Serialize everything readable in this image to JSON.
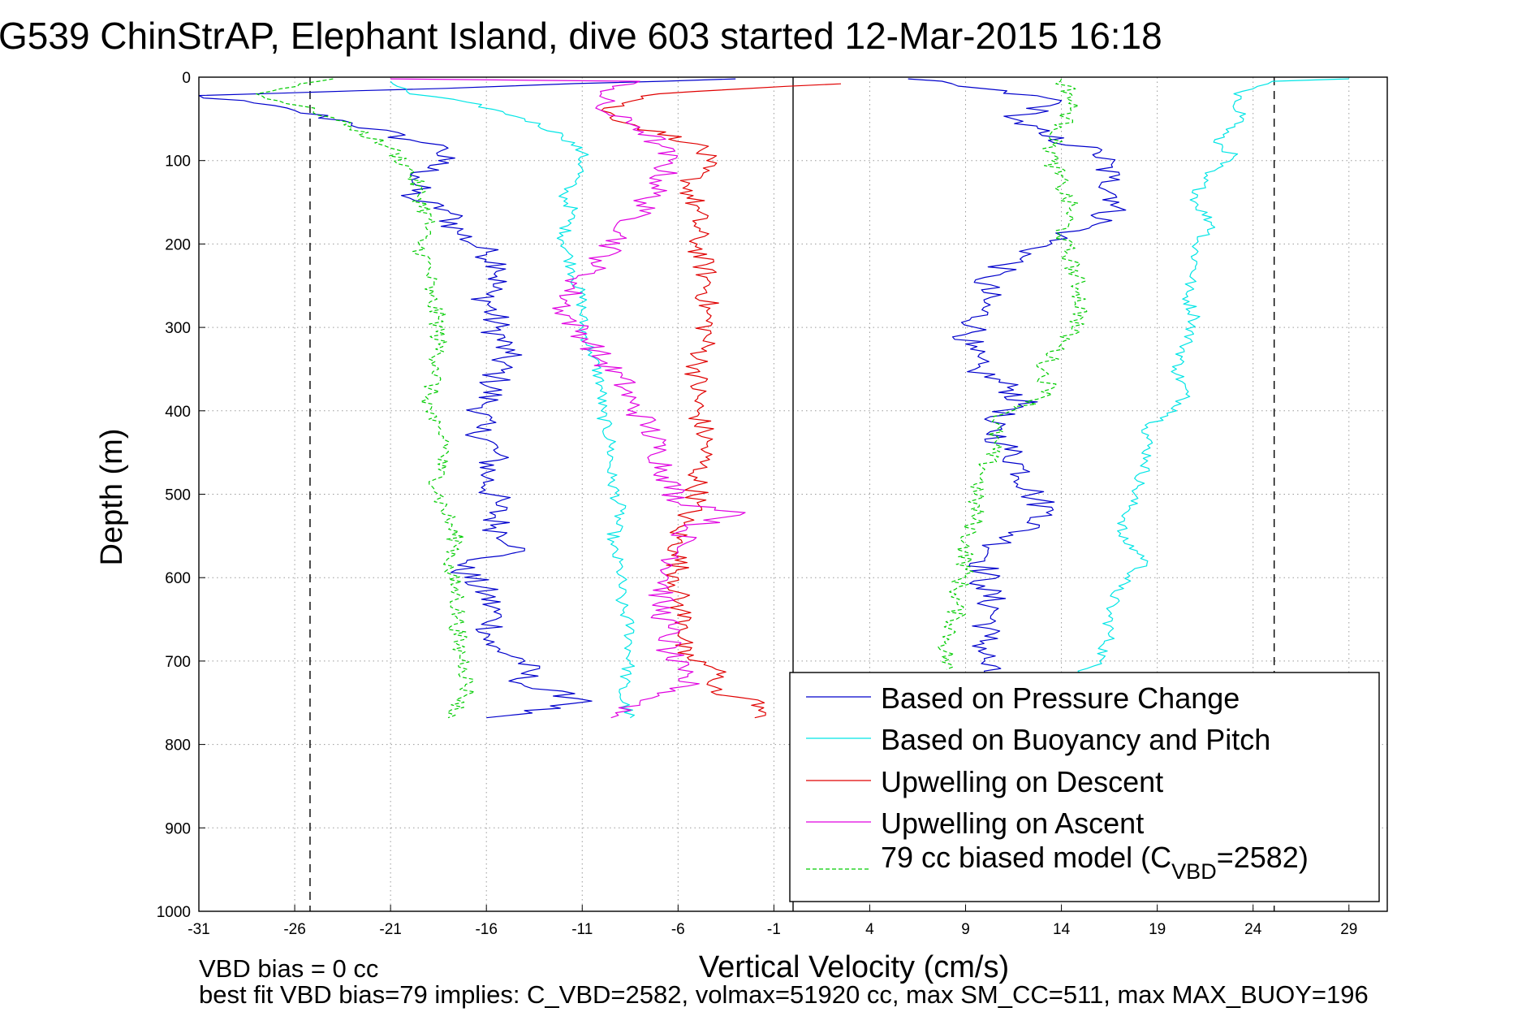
{
  "chart_data": {
    "type": "line",
    "title": "G539 ChinStrAP, Elephant Island, dive 603 started 12-Mar-2015 16:18",
    "xlabel": "Vertical Velocity (cm/s)",
    "ylabel": "Depth (m)",
    "xlim": [
      -31,
      31
    ],
    "ylim": [
      1000,
      0
    ],
    "y_reversed": true,
    "grid": true,
    "x_ticks": [
      "-31",
      "-26",
      "-21",
      "-16",
      "-11",
      "-6",
      "-1",
      "4",
      "9",
      "14",
      "19",
      "24",
      "29"
    ],
    "y_ticks": [
      "0",
      "100",
      "200",
      "300",
      "400",
      "500",
      "600",
      "700",
      "800",
      "900",
      "1000"
    ],
    "reference_lines": [
      {
        "style": "dashed",
        "x": -25.2
      },
      {
        "style": "solid",
        "x": 0
      },
      {
        "style": "dashed",
        "x": 25.1
      }
    ],
    "legend_position": "bottom-right",
    "legend": {
      "entries": [
        {
          "label": "Based on Pressure Change",
          "color": "#0000cc",
          "dash": false
        },
        {
          "label": "Based on Buoyancy and Pitch",
          "color": "#00e5e5",
          "dash": false
        },
        {
          "label": "Upwelling on Descent",
          "color": "#e00000",
          "dash": false
        },
        {
          "label": "Upwelling on Ascent",
          "color": "#e000e0",
          "dash": false
        }
      ],
      "model_entry": {
        "color": "#00cc00",
        "prefix": "79 cc biased model (C",
        "subscript": "VBD",
        "suffix": "=2582)"
      }
    },
    "series": [
      {
        "name": "Based on Pressure Change",
        "color": "#0000cc",
        "noise": 0.9,
        "points": [
          [
            -3,
            2
          ],
          [
            -31,
            22
          ],
          [
            -26,
            40
          ],
          [
            -23,
            55
          ],
          [
            -20,
            75
          ],
          [
            -18,
            85
          ],
          [
            -18.5,
            100
          ],
          [
            -19.5,
            120
          ],
          [
            -20,
            145
          ],
          [
            -18,
            160
          ],
          [
            -17.5,
            185
          ],
          [
            -16,
            210
          ],
          [
            -15,
            230
          ],
          [
            -16,
            260
          ],
          [
            -15.5,
            300
          ],
          [
            -15,
            330
          ],
          [
            -15.5,
            360
          ],
          [
            -16,
            390
          ],
          [
            -16.5,
            420
          ],
          [
            -15.5,
            450
          ],
          [
            -16,
            480
          ],
          [
            -15.5,
            510
          ],
          [
            -15.5,
            540
          ],
          [
            -14,
            565
          ],
          [
            -17.5,
            585
          ],
          [
            -16,
            620
          ],
          [
            -15.5,
            650
          ],
          [
            -16,
            680
          ],
          [
            -14,
            700
          ],
          [
            -14,
            730
          ],
          [
            -10.5,
            748
          ],
          [
            -16,
            768
          ],
          [
            6,
            2
          ],
          [
            14,
            28
          ],
          [
            11.5,
            50
          ],
          [
            13,
            70
          ],
          [
            16,
            90
          ],
          [
            16.5,
            120
          ],
          [
            17,
            150
          ],
          [
            16,
            175
          ],
          [
            14,
            190
          ],
          [
            12,
            215
          ],
          [
            10,
            240
          ],
          [
            10,
            270
          ],
          [
            9.5,
            300
          ],
          [
            9,
            320
          ],
          [
            9.5,
            350
          ],
          [
            11.5,
            375
          ],
          [
            12,
            395
          ],
          [
            10,
            410
          ],
          [
            11,
            440
          ],
          [
            12,
            470
          ],
          [
            12.5,
            500
          ],
          [
            13.5,
            525
          ],
          [
            11,
            555
          ],
          [
            10,
            580
          ],
          [
            10,
            610
          ],
          [
            10.5,
            640
          ],
          [
            10,
            670
          ],
          [
            10,
            700
          ],
          [
            10,
            715
          ]
        ]
      },
      {
        "name": "Based on Buoyancy and Pitch",
        "color": "#00e5e5",
        "noise": 0.35,
        "points": [
          [
            -21,
            5
          ],
          [
            -20,
            20
          ],
          [
            -17,
            30
          ],
          [
            -14,
            50
          ],
          [
            -12,
            70
          ],
          [
            -11,
            90
          ],
          [
            -11,
            110
          ],
          [
            -12,
            140
          ],
          [
            -11.5,
            160
          ],
          [
            -12,
            190
          ],
          [
            -11.5,
            230
          ],
          [
            -11,
            270
          ],
          [
            -11,
            300
          ],
          [
            -10.5,
            330
          ],
          [
            -10,
            370
          ],
          [
            -10,
            400
          ],
          [
            -9.5,
            440
          ],
          [
            -9.5,
            480
          ],
          [
            -9,
            520
          ],
          [
            -9.5,
            560
          ],
          [
            -9,
            590
          ],
          [
            -9,
            630
          ],
          [
            -8.5,
            660
          ],
          [
            -8.5,
            700
          ],
          [
            -9,
            740
          ],
          [
            -8.5,
            768
          ],
          [
            29,
            2
          ],
          [
            25,
            5
          ],
          [
            23,
            20
          ],
          [
            23.5,
            50
          ],
          [
            22,
            75
          ],
          [
            23,
            95
          ],
          [
            21.5,
            115
          ],
          [
            21,
            150
          ],
          [
            22,
            180
          ],
          [
            21,
            200
          ],
          [
            21,
            230
          ],
          [
            20.5,
            260
          ],
          [
            21,
            290
          ],
          [
            20.5,
            320
          ],
          [
            20,
            350
          ],
          [
            20.5,
            380
          ],
          [
            20,
            400
          ],
          [
            18.5,
            420
          ],
          [
            18.5,
            460
          ],
          [
            18,
            490
          ],
          [
            17.5,
            520
          ],
          [
            17,
            550
          ],
          [
            18.5,
            580
          ],
          [
            17,
            610
          ],
          [
            16.5,
            640
          ],
          [
            16.5,
            670
          ],
          [
            16,
            700
          ],
          [
            15,
            715
          ]
        ]
      },
      {
        "name": "Upwelling on Descent",
        "color": "#e00000",
        "noise": 0.65,
        "points": [
          [
            2.5,
            8
          ],
          [
            -7,
            20
          ],
          [
            -10,
            40
          ],
          [
            -8,
            60
          ],
          [
            -5,
            80
          ],
          [
            -4.5,
            100
          ],
          [
            -5.5,
            130
          ],
          [
            -5,
            160
          ],
          [
            -5,
            200
          ],
          [
            -4.5,
            240
          ],
          [
            -4.5,
            280
          ],
          [
            -4.5,
            310
          ],
          [
            -5,
            350
          ],
          [
            -5,
            400
          ],
          [
            -4.5,
            440
          ],
          [
            -5,
            480
          ],
          [
            -5,
            510
          ],
          [
            -6,
            540
          ],
          [
            -6,
            570
          ],
          [
            -6,
            600
          ],
          [
            -6,
            630
          ],
          [
            -5.5,
            660
          ],
          [
            -6,
            690
          ],
          [
            -4,
            710
          ],
          [
            -4,
            740
          ],
          [
            -1.5,
            750
          ],
          [
            -2,
            768
          ]
        ]
      },
      {
        "name": "Upwelling on Ascent",
        "color": "#e000e0",
        "noise": 0.75,
        "points": [
          [
            -21,
            2
          ],
          [
            -8,
            5
          ],
          [
            -10,
            20
          ],
          [
            -10,
            40
          ],
          [
            -8,
            60
          ],
          [
            -7,
            80
          ],
          [
            -6.5,
            100
          ],
          [
            -7,
            130
          ],
          [
            -8,
            160
          ],
          [
            -9,
            190
          ],
          [
            -10,
            220
          ],
          [
            -11.5,
            250
          ],
          [
            -12,
            280
          ],
          [
            -10.5,
            320
          ],
          [
            -10,
            340
          ],
          [
            -9,
            360
          ],
          [
            -8.5,
            390
          ],
          [
            -7.5,
            420
          ],
          [
            -7,
            450
          ],
          [
            -6.5,
            480
          ],
          [
            -6,
            510
          ],
          [
            -2.5,
            522
          ],
          [
            -5.5,
            540
          ],
          [
            -6,
            570
          ],
          [
            -6.5,
            600
          ],
          [
            -7,
            630
          ],
          [
            -6.5,
            660
          ],
          [
            -6.5,
            690
          ],
          [
            -6,
            710
          ],
          [
            -5.5,
            730
          ],
          [
            -8,
            750
          ],
          [
            -9.5,
            768
          ]
        ]
      },
      {
        "name": "79 cc biased model (CVBD=2582)",
        "color": "#00cc00",
        "noise": 0.5,
        "dashed": true,
        "points": [
          [
            -24,
            2
          ],
          [
            -28,
            20
          ],
          [
            -25,
            40
          ],
          [
            -23,
            60
          ],
          [
            -21,
            85
          ],
          [
            -20,
            110
          ],
          [
            -19.5,
            140
          ],
          [
            -19,
            170
          ],
          [
            -19.5,
            200
          ],
          [
            -19,
            230
          ],
          [
            -19,
            260
          ],
          [
            -18.5,
            290
          ],
          [
            -18.5,
            320
          ],
          [
            -18.5,
            350
          ],
          [
            -19,
            380
          ],
          [
            -19,
            410
          ],
          [
            -18,
            440
          ],
          [
            -18.5,
            470
          ],
          [
            -18.5,
            500
          ],
          [
            -18,
            530
          ],
          [
            -17.5,
            560
          ],
          [
            -18,
            590
          ],
          [
            -17.5,
            620
          ],
          [
            -17.5,
            650
          ],
          [
            -17.5,
            680
          ],
          [
            -17,
            710
          ],
          [
            -17,
            740
          ],
          [
            -18,
            768
          ],
          [
            14,
            2
          ],
          [
            14.5,
            20
          ],
          [
            14.5,
            40
          ],
          [
            14,
            60
          ],
          [
            13.5,
            80
          ],
          [
            13.5,
            100
          ],
          [
            14,
            130
          ],
          [
            14.5,
            160
          ],
          [
            14,
            190
          ],
          [
            14.5,
            220
          ],
          [
            15,
            260
          ],
          [
            15,
            290
          ],
          [
            14,
            320
          ],
          [
            13,
            350
          ],
          [
            13.5,
            380
          ],
          [
            10.5,
            410
          ],
          [
            10.5,
            440
          ],
          [
            10,
            470
          ],
          [
            9.5,
            500
          ],
          [
            9.5,
            530
          ],
          [
            9,
            560
          ],
          [
            9,
            590
          ],
          [
            8.5,
            620
          ],
          [
            8.5,
            650
          ],
          [
            8,
            680
          ],
          [
            8,
            710
          ]
        ]
      }
    ]
  },
  "footnotes": {
    "line1": "VBD bias = 0 cc",
    "line2": "best fit VBD bias=79 implies: C_VBD=2582, volmax=51920 cc, max SM_CC=511, max MAX_BUOY=196"
  }
}
